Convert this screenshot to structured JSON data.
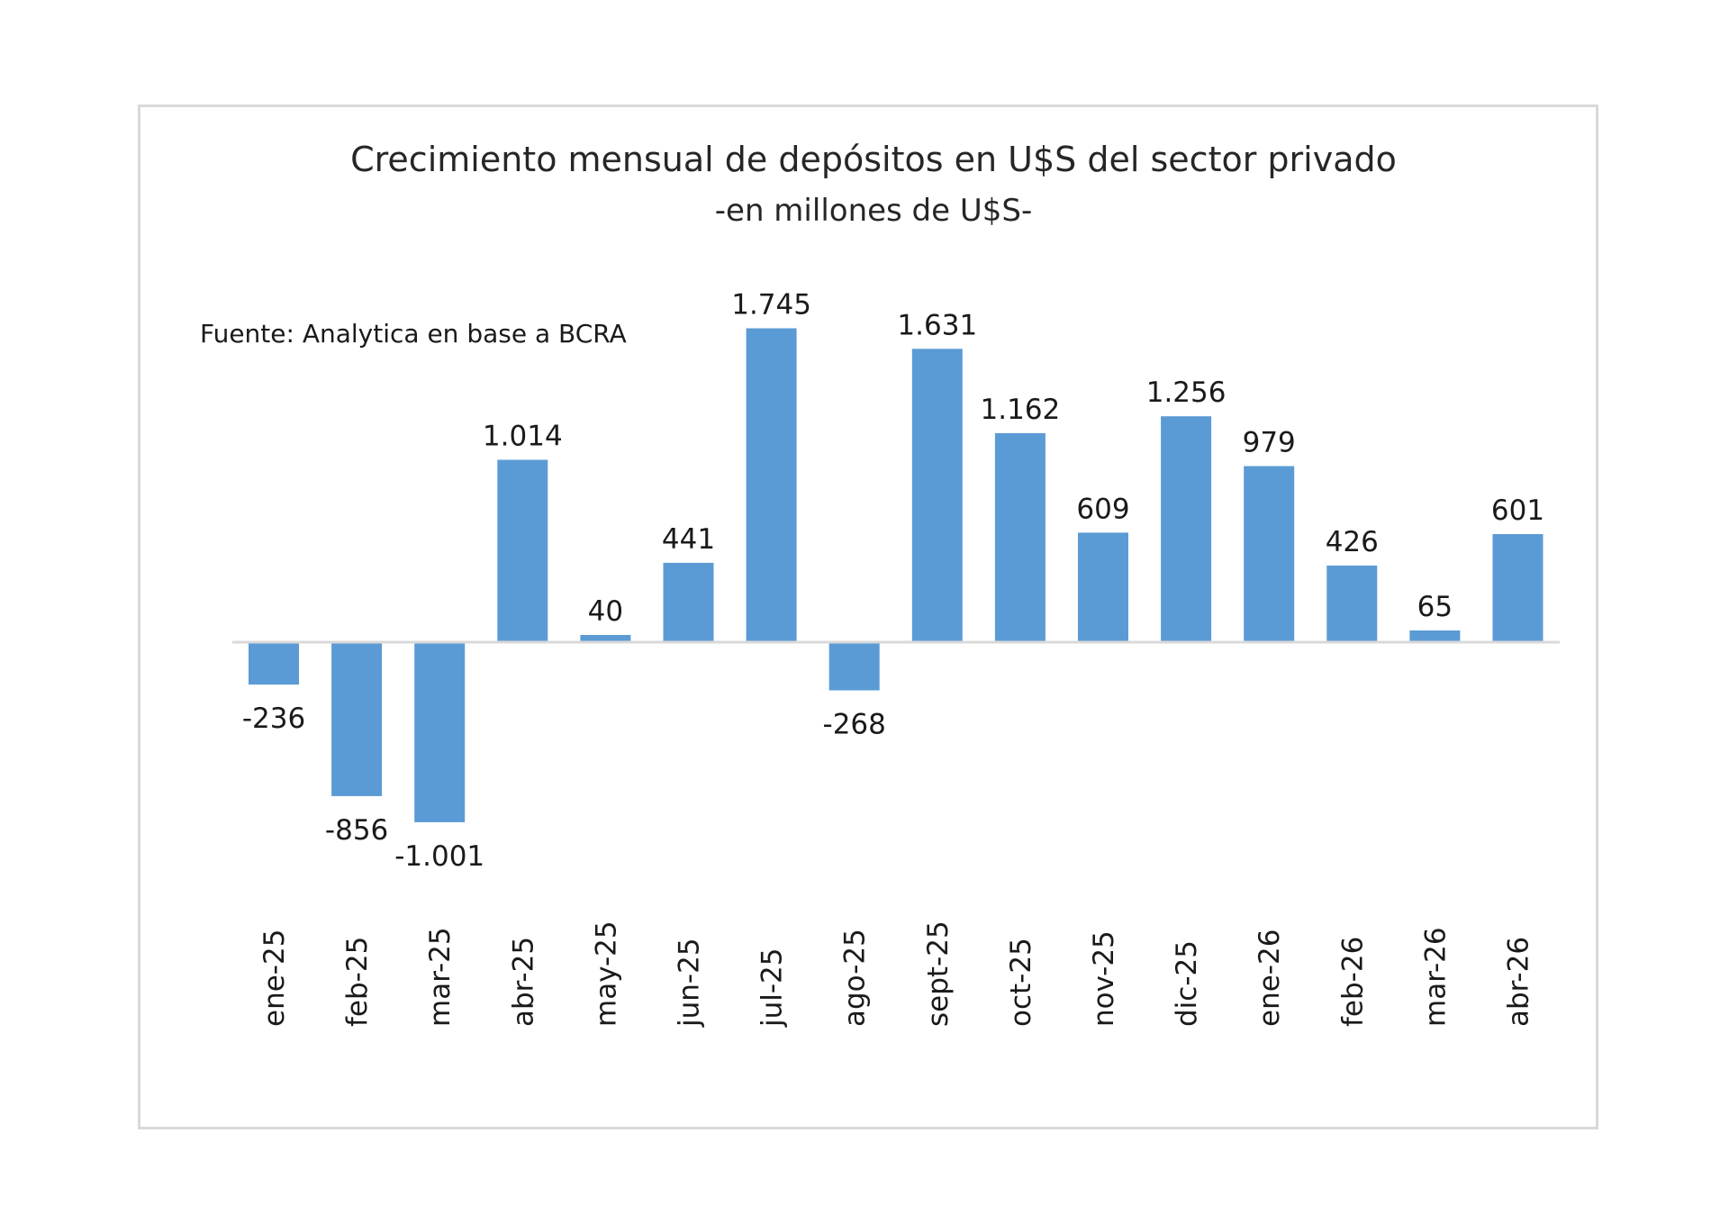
{
  "chart_data": {
    "type": "bar",
    "title": "Crecimiento mensual de depósitos en U$S del sector privado",
    "subtitle": "-en millones de U$S-",
    "source": "Fuente: Analytica en base a BCRA",
    "categories": [
      "ene-25",
      "feb-25",
      "mar-25",
      "abr-25",
      "may-25",
      "jun-25",
      "jul-25",
      "ago-25",
      "sept-25",
      "oct-25",
      "nov-25",
      "dic-25",
      "ene-26",
      "feb-26",
      "mar-26",
      "abr-26"
    ],
    "values": [
      -236,
      -856,
      -1001,
      1014,
      40,
      441,
      1745,
      -268,
      1631,
      1162,
      609,
      1256,
      979,
      426,
      65,
      601
    ],
    "data_labels": [
      "-236",
      "-856",
      "-1.001",
      "1.014",
      "40",
      "441",
      "1.745",
      "-268",
      "1.631",
      "1.162",
      "609",
      "1.256",
      "979",
      "426",
      "65",
      "601"
    ],
    "bar_color": "#5b9bd5",
    "axis_color": "#d9d9d9",
    "ylim": [
      -1200,
      1900
    ],
    "grid": false,
    "legend": "none",
    "tick_label_rotation": "vertical"
  }
}
